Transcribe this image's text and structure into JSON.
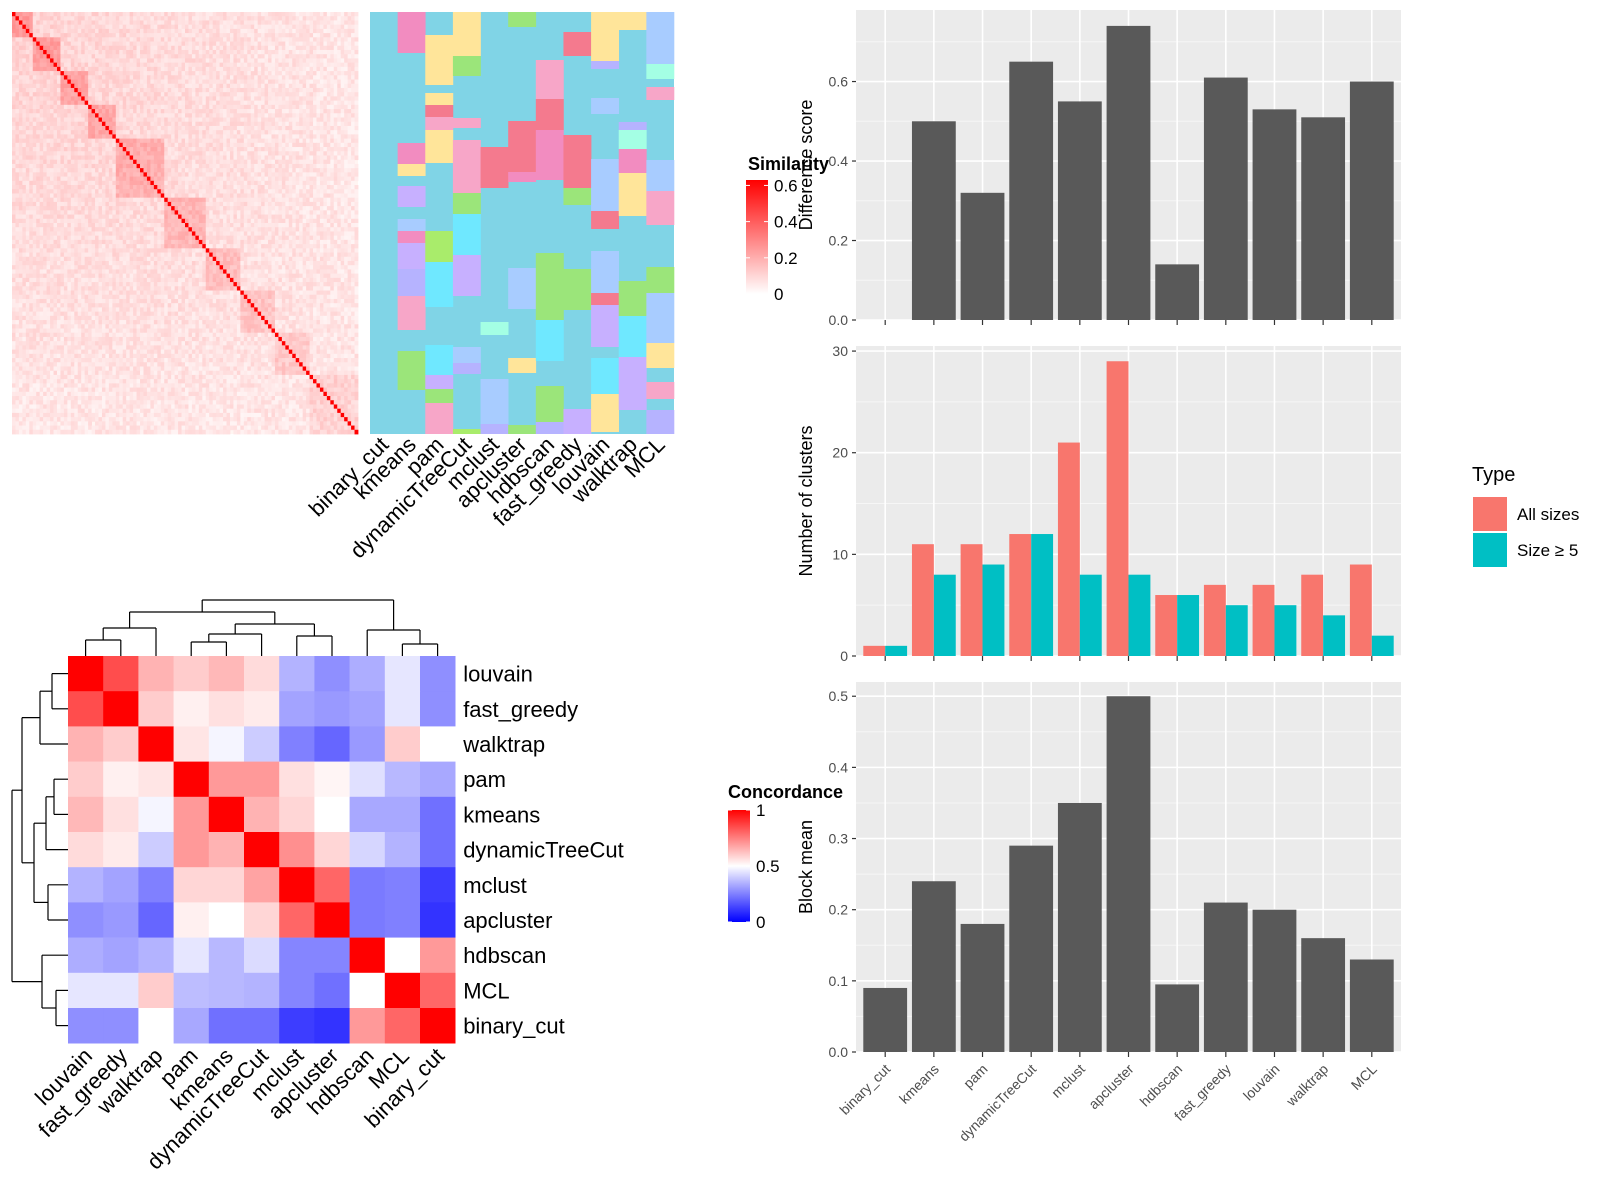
{
  "similarity_heatmap": {
    "column_labels": [
      "binary_cut",
      "kmeans",
      "pam",
      "dynamicTreeCut",
      "mclust",
      "apcluster",
      "hdbscan",
      "fast_greedy",
      "louvain",
      "walktrap",
      "MCL"
    ],
    "legend": {
      "title": "Similarity",
      "ticks": [
        "0",
        "0.2",
        "0.4",
        "0.6"
      ],
      "colors": [
        "#ffffff",
        "#ff0000"
      ]
    },
    "n_terms": 100
  },
  "concordance_heatmap": {
    "row_labels": [
      "louvain",
      "fast_greedy",
      "walktrap",
      "pam",
      "kmeans",
      "dynamicTreeCut",
      "mclust",
      "apcluster",
      "hdbscan",
      "MCL",
      "binary_cut"
    ],
    "column_labels": [
      "louvain",
      "fast_greedy",
      "walktrap",
      "pam",
      "kmeans",
      "dynamicTreeCut",
      "mclust",
      "apcluster",
      "hdbscan",
      "MCL",
      "binary_cut"
    ],
    "values": [
      [
        1.0,
        0.85,
        0.65,
        0.6,
        0.64,
        0.57,
        0.35,
        0.28,
        0.34,
        0.45,
        0.28
      ],
      [
        0.85,
        1.0,
        0.6,
        0.53,
        0.56,
        0.54,
        0.32,
        0.3,
        0.32,
        0.45,
        0.28
      ],
      [
        0.65,
        0.6,
        1.0,
        0.55,
        0.48,
        0.4,
        0.25,
        0.2,
        0.3,
        0.6,
        0.5
      ],
      [
        0.6,
        0.53,
        0.55,
        1.0,
        0.7,
        0.7,
        0.56,
        0.52,
        0.44,
        0.36,
        0.33
      ],
      [
        0.64,
        0.56,
        0.48,
        0.7,
        1.0,
        0.65,
        0.58,
        0.5,
        0.33,
        0.33,
        0.22
      ],
      [
        0.57,
        0.54,
        0.4,
        0.7,
        0.65,
        1.0,
        0.72,
        0.58,
        0.42,
        0.35,
        0.22
      ],
      [
        0.35,
        0.32,
        0.25,
        0.58,
        0.58,
        0.68,
        1.0,
        0.8,
        0.24,
        0.25,
        0.12
      ],
      [
        0.28,
        0.3,
        0.2,
        0.53,
        0.5,
        0.58,
        0.8,
        1.0,
        0.24,
        0.25,
        0.1
      ],
      [
        0.34,
        0.32,
        0.35,
        0.45,
        0.36,
        0.43,
        0.26,
        0.26,
        1.0,
        0.5,
        0.7
      ],
      [
        0.45,
        0.45,
        0.6,
        0.37,
        0.36,
        0.35,
        0.26,
        0.22,
        0.5,
        1.0,
        0.8
      ],
      [
        0.28,
        0.28,
        0.5,
        0.33,
        0.22,
        0.22,
        0.12,
        0.1,
        0.7,
        0.8,
        1.0
      ]
    ],
    "legend": {
      "title": "Concordance",
      "ticks": [
        "0",
        "0.5",
        "1"
      ],
      "colors": [
        "#0000ff",
        "#ffffff",
        "#ff0000"
      ]
    }
  },
  "chart_data": [
    {
      "type": "bar",
      "categories": [
        "binary_cut",
        "kmeans",
        "pam",
        "dynamicTreeCut",
        "mclust",
        "apcluster",
        "hdbscan",
        "fast_greedy",
        "louvain",
        "walktrap",
        "MCL"
      ],
      "values": [
        0.0,
        0.5,
        0.32,
        0.65,
        0.55,
        0.74,
        0.14,
        0.61,
        0.53,
        0.51,
        0.6
      ],
      "ylabel": "Difference score",
      "ylim": [
        0,
        0.78
      ],
      "yticks": [
        "0.0",
        "0.2",
        "0.4",
        "0.6"
      ],
      "grid": true,
      "bar_color": "#595959"
    },
    {
      "type": "bar",
      "categories": [
        "binary_cut",
        "kmeans",
        "pam",
        "dynamicTreeCut",
        "mclust",
        "apcluster",
        "hdbscan",
        "fast_greedy",
        "louvain",
        "walktrap",
        "MCL"
      ],
      "series": [
        {
          "name": "All sizes",
          "values": [
            1,
            11,
            11,
            12,
            21,
            29,
            6,
            7,
            7,
            8,
            9
          ],
          "color": "#F8766D"
        },
        {
          "name": "Size ≥ 5",
          "values": [
            1,
            8,
            9,
            12,
            8,
            8,
            6,
            5,
            5,
            4,
            2
          ],
          "color": "#00BFC4"
        }
      ],
      "ylabel": "Number of clusters",
      "ylim": [
        0,
        30.5
      ],
      "yticks": [
        "0",
        "10",
        "20",
        "30"
      ],
      "legend": {
        "title": "Type",
        "position": "right"
      },
      "grid": true
    },
    {
      "type": "bar",
      "categories": [
        "binary_cut",
        "kmeans",
        "pam",
        "dynamicTreeCut",
        "mclust",
        "apcluster",
        "hdbscan",
        "fast_greedy",
        "louvain",
        "walktrap",
        "MCL"
      ],
      "values": [
        0.09,
        0.24,
        0.18,
        0.29,
        0.35,
        0.5,
        0.095,
        0.21,
        0.2,
        0.16,
        0.13
      ],
      "ylabel": "Block mean",
      "ylim": [
        0,
        0.52
      ],
      "yticks": [
        "0.0",
        "0.1",
        "0.2",
        "0.3",
        "0.4",
        "0.5"
      ],
      "grid": true,
      "bar_color": "#595959"
    }
  ]
}
